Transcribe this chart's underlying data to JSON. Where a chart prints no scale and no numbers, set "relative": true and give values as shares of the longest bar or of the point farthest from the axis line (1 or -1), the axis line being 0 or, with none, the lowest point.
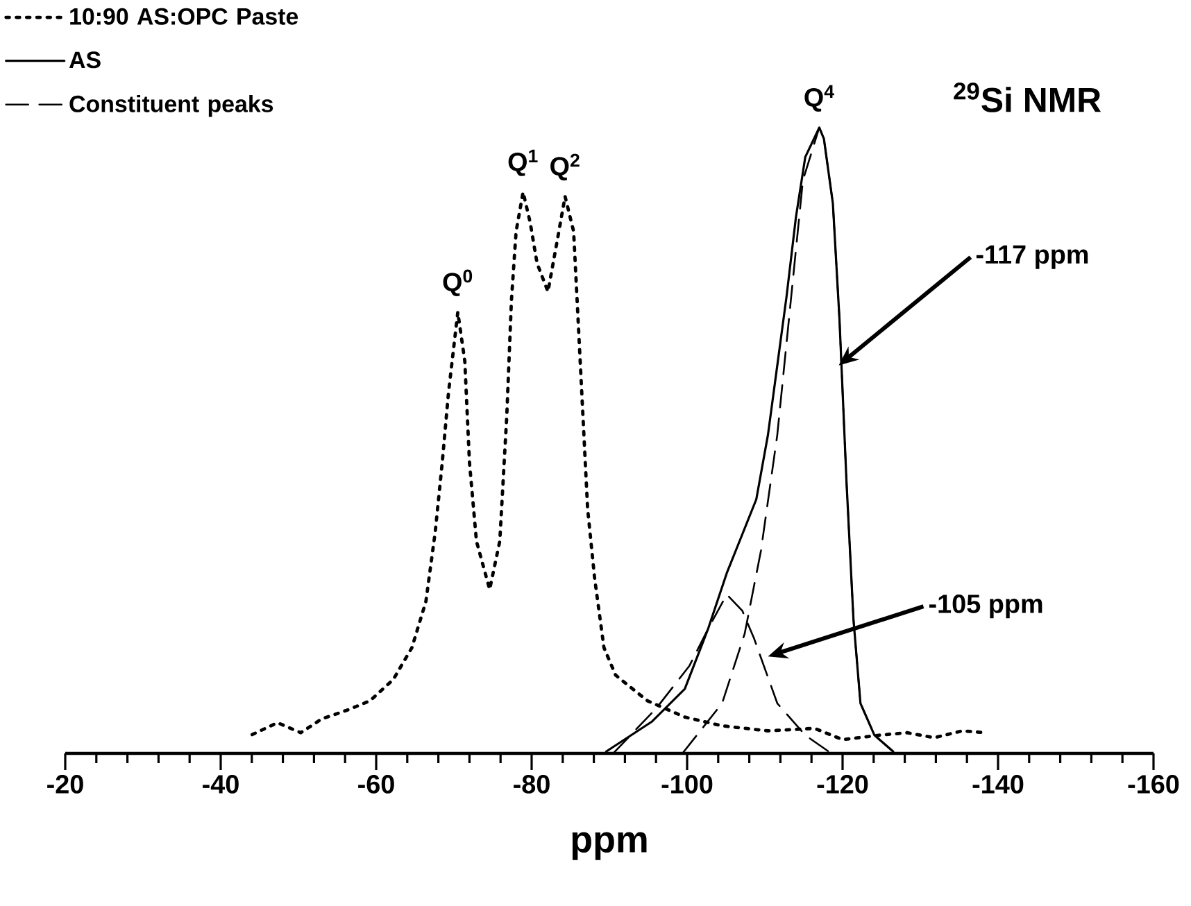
{
  "chart_data": {
    "type": "line",
    "title": "$^{29}$Si NMR",
    "xlabel": "ppm",
    "relative": true,
    "xlim": [
      -20,
      -160
    ],
    "xticks": [
      -20,
      {
        "value": -24,
        "label": null
      },
      {
        "value": -28,
        "label": null
      },
      {
        "value": -32,
        "label": null
      },
      {
        "value": -36,
        "label": null
      },
      -40,
      {
        "value": -44,
        "label": null
      },
      {
        "value": -48,
        "label": null
      },
      {
        "value": -52,
        "label": null
      },
      {
        "value": -56,
        "label": null
      },
      -60,
      {
        "value": -64,
        "label": null
      },
      {
        "value": -68,
        "label": null
      },
      {
        "value": -72,
        "label": null
      },
      {
        "value": -76,
        "label": null
      },
      -80,
      {
        "value": -84,
        "label": null
      },
      {
        "value": -88,
        "label": null
      },
      {
        "value": -92,
        "label": null
      },
      {
        "value": -96,
        "label": null
      },
      -100,
      {
        "value": -104,
        "label": null
      },
      {
        "value": -108,
        "label": null
      },
      {
        "value": -112,
        "label": null
      },
      {
        "value": -116,
        "label": null
      },
      -120,
      {
        "value": -124,
        "label": null
      },
      {
        "value": -128,
        "label": null
      },
      {
        "value": -132,
        "label": null
      },
      {
        "value": -136,
        "label": null
      },
      -140,
      {
        "value": -144,
        "label": null
      },
      {
        "value": -148,
        "label": null
      },
      {
        "value": -152,
        "label": null
      },
      {
        "value": -156,
        "label": null
      },
      -160
    ],
    "tick_labels": "x",
    "grid": false,
    "legend": "top left",
    "marker": "none",
    "series": [
      {
        "name": "10:90 AS:OPC Paste",
        "color": "#000000",
        "line_style": "dotted",
        "x": [
          -44.05,
          -47.3,
          -50.3,
          -53.0,
          -56.25,
          -59.2,
          -62.2,
          -64.6,
          -66.4,
          -67.6,
          -68.5,
          -69.3,
          -70.5,
          -71.4,
          -72.0,
          -72.9,
          -74.6,
          -75.9,
          -76.8,
          -77.4,
          -78.0,
          -78.9,
          -79.8,
          -80.7,
          -82.1,
          -83.3,
          -84.3,
          -85.4,
          -86.0,
          -86.6,
          -87.2,
          -88.1,
          -89.3,
          -90.8,
          -94.9,
          -99.7,
          -104.5,
          -110.4,
          -116.4,
          -120.0,
          -124.7,
          -128.3,
          -131.8,
          -135.4,
          -138.4
        ],
        "values": [
          0.03,
          0.049,
          0.033,
          0.055,
          0.069,
          0.084,
          0.118,
          0.169,
          0.243,
          0.354,
          0.465,
          0.576,
          0.705,
          0.627,
          0.465,
          0.339,
          0.262,
          0.339,
          0.539,
          0.724,
          0.834,
          0.897,
          0.849,
          0.783,
          0.738,
          0.82,
          0.89,
          0.834,
          0.687,
          0.539,
          0.391,
          0.28,
          0.169,
          0.125,
          0.084,
          0.058,
          0.044,
          0.036,
          0.04,
          0.022,
          0.029,
          0.033,
          0.025,
          0.036,
          0.033
        ]
      },
      {
        "name": "AS",
        "color": "#000000",
        "line_style": "solid",
        "x": [
          -89.6,
          -95.5,
          -99.7,
          -102.7,
          -105.1,
          -107.1,
          -108.9,
          -110.4,
          -111.6,
          -112.8,
          -114.0,
          -115.2,
          -117.0,
          -117.6,
          -118.75,
          -119.6,
          -120.5,
          -121.4,
          -122.3,
          -124.1,
          -126.5
        ],
        "values": [
          0.003,
          0.051,
          0.103,
          0.199,
          0.288,
          0.35,
          0.406,
          0.509,
          0.62,
          0.731,
          0.857,
          0.953,
          1.0,
          0.982,
          0.879,
          0.694,
          0.435,
          0.214,
          0.08,
          0.029,
          0.003
        ]
      },
      {
        "name": "Constituent peaks",
        "color": "#000000",
        "line_style": "dashed",
        "x": [
          -99.4,
          -104.5,
          -107.4,
          -109.5,
          -111.6,
          -113.4,
          -114.9,
          -117.0,
          -117.6,
          -118.75,
          -119.6,
          -120.5,
          -121.4,
          -122.3,
          -124.1,
          -126.5
        ],
        "values": [
          0.0,
          0.08,
          0.191,
          0.324,
          0.509,
          0.731,
          0.916,
          1.0,
          0.982,
          0.879,
          0.694,
          0.435,
          0.214,
          0.08,
          0.029,
          0.003
        ]
      },
      {
        "color": "#000000",
        "line_style": "dashed",
        "x": [
          -90.5,
          -96.1,
          -100.3,
          -102.7,
          -105.1,
          -107.1,
          -108.6,
          -111.6,
          -115.2,
          -118.2
        ],
        "values": [
          0.0,
          0.073,
          0.14,
          0.199,
          0.254,
          0.228,
          0.184,
          0.08,
          0.029,
          0.003
        ]
      }
    ],
    "annotations": [
      {
        "text": "Q$^{0}$",
        "x": -70.5,
        "y": 0.705
      },
      {
        "text": "Q$^{1}$",
        "x": -78.9,
        "y": 0.897
      },
      {
        "text": "Q$^{2}$",
        "x": -84.3,
        "y": 0.89
      },
      {
        "text": "Q$^{4}$",
        "x": -117.0,
        "y": 1.0
      },
      {
        "text": "-117 ppm",
        "x": -119.5,
        "y": 0.62
      },
      {
        "text": "-105 ppm",
        "x": -110.4,
        "y": 0.155
      }
    ]
  }
}
